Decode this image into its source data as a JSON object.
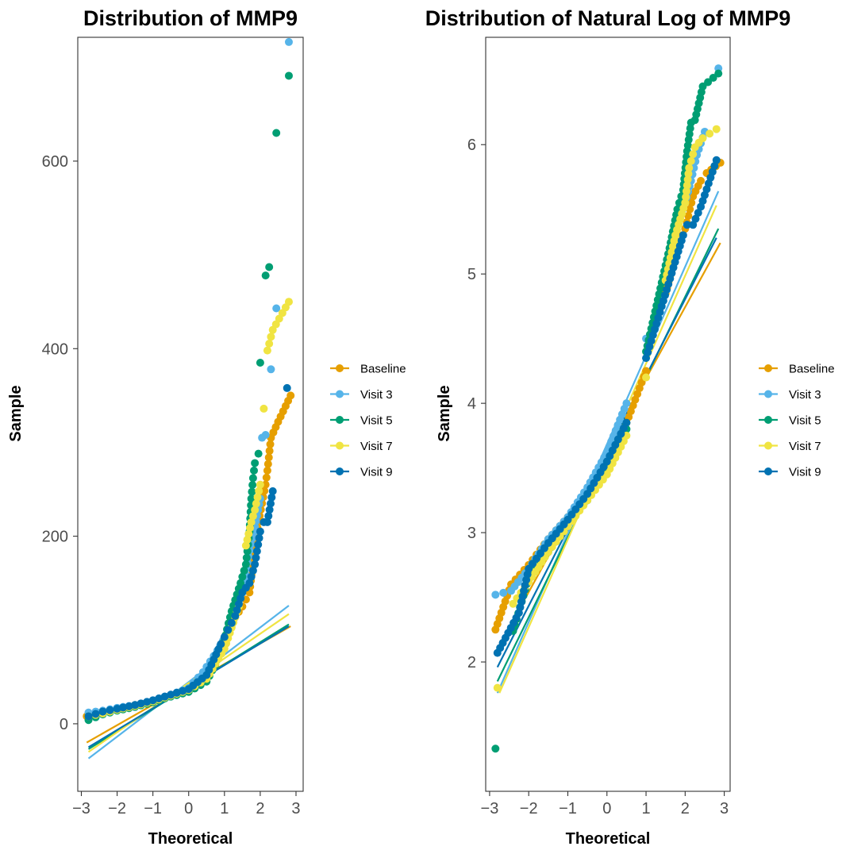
{
  "colors": {
    "Baseline": "#E69F00",
    "Visit 3": "#56B4E9",
    "Visit 5": "#009E73",
    "Visit 7": "#F0E442",
    "Visit 9": "#0072B2"
  },
  "legend": [
    "Baseline",
    "Visit 3",
    "Visit 5",
    "Visit 7",
    "Visit 9"
  ],
  "chart_data": [
    {
      "type": "scatter",
      "subtype": "qq-plot",
      "title": "Distribution of MMP9",
      "xlabel": "Theoretical",
      "ylabel": "Sample",
      "xlim": [
        -3.1,
        3.2
      ],
      "ylim": [
        -72,
        732
      ],
      "xticks": [
        -3,
        -2,
        -1,
        0,
        1,
        2,
        3
      ],
      "xtick_labels": [
        "−3",
        "−2",
        "−1",
        "0",
        "1",
        "2",
        "3"
      ],
      "yticks": [
        0,
        200,
        400,
        600
      ],
      "grid": false,
      "legend_position": "right",
      "series": [
        {
          "name": "Baseline",
          "line": [
            [
              -2.85,
              -20
            ],
            [
              2.85,
              104
            ]
          ],
          "points": [
            [
              -2.85,
              8
            ],
            [
              -2.45,
              12
            ],
            [
              -2.0,
              16
            ],
            [
              -1.5,
              20
            ],
            [
              -1.0,
              24
            ],
            [
              -0.5,
              30
            ],
            [
              0.0,
              36
            ],
            [
              0.5,
              50
            ],
            [
              0.9,
              80
            ],
            [
              1.2,
              108
            ],
            [
              1.5,
              125
            ],
            [
              1.7,
              140
            ],
            [
              1.85,
              190
            ],
            [
              1.95,
              215
            ],
            [
              2.05,
              235
            ],
            [
              2.15,
              255
            ],
            [
              2.2,
              270
            ],
            [
              2.3,
              305
            ],
            [
              2.5,
              322
            ],
            [
              2.85,
              350
            ]
          ]
        },
        {
          "name": "Visit 3",
          "line": [
            [
              -2.8,
              -37
            ],
            [
              2.8,
              126
            ]
          ],
          "points": [
            [
              -2.8,
              12
            ],
            [
              -2.4,
              14
            ],
            [
              -2.0,
              17
            ],
            [
              -1.5,
              20
            ],
            [
              -1.0,
              25
            ],
            [
              -0.5,
              31
            ],
            [
              0.0,
              38
            ],
            [
              0.4,
              55
            ],
            [
              0.8,
              78
            ],
            [
              1.2,
              105
            ],
            [
              1.5,
              140
            ],
            [
              1.7,
              185
            ],
            [
              1.85,
              210
            ],
            [
              2.0,
              240
            ],
            [
              2.05,
              305
            ],
            [
              2.15,
              308
            ],
            [
              2.3,
              378
            ],
            [
              2.45,
              443
            ],
            [
              2.8,
              727
            ]
          ]
        },
        {
          "name": "Visit 5",
          "line": [
            [
              -2.8,
              -27
            ],
            [
              2.8,
              106
            ]
          ],
          "points": [
            [
              -2.8,
              4
            ],
            [
              -2.4,
              10
            ],
            [
              -2.0,
              14
            ],
            [
              -1.5,
              18
            ],
            [
              -1.0,
              23
            ],
            [
              -0.5,
              29
            ],
            [
              0.0,
              34
            ],
            [
              0.5,
              45
            ],
            [
              0.9,
              75
            ],
            [
              1.2,
              120
            ],
            [
              1.45,
              150
            ],
            [
              1.6,
              170
            ],
            [
              1.7,
              205
            ],
            [
              1.75,
              240
            ],
            [
              1.8,
              262
            ],
            [
              1.85,
              278
            ],
            [
              1.95,
              288
            ],
            [
              2.0,
              385
            ],
            [
              2.15,
              478
            ],
            [
              2.25,
              487
            ],
            [
              2.45,
              630
            ],
            [
              2.8,
              691
            ]
          ]
        },
        {
          "name": "Visit 7",
          "line": [
            [
              -2.8,
              -30
            ],
            [
              2.8,
              117
            ]
          ],
          "points": [
            [
              -2.8,
              8
            ],
            [
              -2.4,
              11
            ],
            [
              -2.0,
              15
            ],
            [
              -1.5,
              19
            ],
            [
              -1.0,
              24
            ],
            [
              -0.5,
              30
            ],
            [
              0.0,
              36
            ],
            [
              0.5,
              48
            ],
            [
              1.0,
              80
            ],
            [
              1.4,
              125
            ],
            [
              1.6,
              190
            ],
            [
              1.75,
              215
            ],
            [
              1.85,
              228
            ],
            [
              2.0,
              255
            ],
            [
              2.1,
              336
            ],
            [
              2.2,
              398
            ],
            [
              2.35,
              420
            ],
            [
              2.8,
              450
            ]
          ]
        },
        {
          "name": "Visit 9",
          "line": [
            [
              -2.8,
              -25
            ],
            [
              2.8,
              104
            ]
          ],
          "points": [
            [
              -2.8,
              8
            ],
            [
              -2.4,
              13
            ],
            [
              -2.0,
              16
            ],
            [
              -1.5,
              20
            ],
            [
              -1.0,
              25
            ],
            [
              -0.5,
              31
            ],
            [
              0.0,
              37
            ],
            [
              0.5,
              52
            ],
            [
              0.9,
              85
            ],
            [
              1.1,
              100
            ],
            [
              1.3,
              115
            ],
            [
              1.5,
              140
            ],
            [
              1.7,
              150
            ],
            [
              1.85,
              170
            ],
            [
              2.0,
              205
            ],
            [
              2.1,
              215
            ],
            [
              2.2,
              215
            ],
            [
              2.35,
              248
            ],
            [
              2.75,
              358
            ]
          ]
        }
      ]
    },
    {
      "type": "scatter",
      "subtype": "qq-plot",
      "title": "Distribution of Natural Log of MMP9",
      "xlabel": "Theoretical",
      "ylabel": "Sample",
      "xlim": [
        -3.1,
        3.15
      ],
      "ylim": [
        1.0,
        6.83
      ],
      "xticks": [
        -3,
        -2,
        -1,
        0,
        1,
        2,
        3
      ],
      "xtick_labels": [
        "−3",
        "−2",
        "−1",
        "0",
        "1",
        "2",
        "3"
      ],
      "yticks": [
        2,
        3,
        4,
        5,
        6
      ],
      "grid": false,
      "legend_position": "right",
      "series": [
        {
          "name": "Baseline",
          "line": [
            [
              -2.8,
              2.1
            ],
            [
              2.9,
              5.24
            ]
          ],
          "points": [
            [
              -2.85,
              2.25
            ],
            [
              -2.45,
              2.6
            ],
            [
              -2.0,
              2.75
            ],
            [
              -1.5,
              2.95
            ],
            [
              -1.0,
              3.12
            ],
            [
              -0.5,
              3.3
            ],
            [
              0.0,
              3.55
            ],
            [
              0.5,
              3.85
            ],
            [
              1.0,
              4.25
            ],
            [
              1.5,
              4.85
            ],
            [
              1.8,
              5.2
            ],
            [
              2.0,
              5.35
            ],
            [
              2.2,
              5.6
            ],
            [
              2.4,
              5.72
            ],
            [
              2.55,
              5.78
            ],
            [
              2.9,
              5.86
            ]
          ]
        },
        {
          "name": "Visit 3",
          "line": [
            [
              -2.8,
              1.76
            ],
            [
              2.85,
              5.64
            ]
          ],
          "points": [
            [
              -2.85,
              2.52
            ],
            [
              -2.45,
              2.55
            ],
            [
              -2.0,
              2.72
            ],
            [
              -1.5,
              2.95
            ],
            [
              -1.0,
              3.12
            ],
            [
              -0.5,
              3.35
            ],
            [
              0.0,
              3.62
            ],
            [
              0.5,
              4.0
            ],
            [
              1.0,
              4.5
            ],
            [
              1.5,
              5.0
            ],
            [
              1.75,
              5.35
            ],
            [
              2.0,
              5.55
            ],
            [
              2.15,
              5.72
            ],
            [
              2.3,
              5.92
            ],
            [
              2.5,
              6.1
            ],
            [
              2.85,
              6.59
            ]
          ]
        },
        {
          "name": "Visit 5",
          "line": [
            [
              -2.8,
              1.85
            ],
            [
              2.85,
              5.35
            ]
          ],
          "points": [
            [
              -2.85,
              1.33
            ],
            [
              -2.4,
              2.24
            ],
            [
              -2.0,
              2.65
            ],
            [
              -1.5,
              2.85
            ],
            [
              -1.0,
              3.08
            ],
            [
              -0.5,
              3.25
            ],
            [
              0.0,
              3.5
            ],
            [
              0.5,
              3.8
            ],
            [
              1.0,
              4.4
            ],
            [
              1.3,
              4.8
            ],
            [
              1.6,
              5.2
            ],
            [
              1.8,
              5.5
            ],
            [
              1.95,
              5.65
            ],
            [
              2.05,
              5.95
            ],
            [
              2.15,
              6.17
            ],
            [
              2.25,
              6.19
            ],
            [
              2.45,
              6.45
            ],
            [
              2.85,
              6.55
            ]
          ]
        },
        {
          "name": "Visit 7",
          "line": [
            [
              -2.75,
              1.76
            ],
            [
              2.8,
              5.53
            ]
          ],
          "points": [
            [
              -2.8,
              1.8
            ],
            [
              -2.4,
              2.45
            ],
            [
              -2.0,
              2.62
            ],
            [
              -1.5,
              2.85
            ],
            [
              -1.0,
              3.05
            ],
            [
              -0.5,
              3.25
            ],
            [
              0.0,
              3.45
            ],
            [
              0.5,
              3.75
            ],
            [
              1.0,
              4.2
            ],
            [
              1.5,
              4.95
            ],
            [
              1.75,
              5.3
            ],
            [
              2.0,
              5.55
            ],
            [
              2.1,
              5.82
            ],
            [
              2.25,
              5.98
            ],
            [
              2.45,
              6.05
            ],
            [
              2.8,
              6.12
            ]
          ]
        },
        {
          "name": "Visit 9",
          "line": [
            [
              -2.8,
              1.96
            ],
            [
              2.8,
              5.28
            ]
          ],
          "points": [
            [
              -2.8,
              2.07
            ],
            [
              -2.25,
              2.38
            ],
            [
              -2.0,
              2.72
            ],
            [
              -1.5,
              2.92
            ],
            [
              -1.0,
              3.1
            ],
            [
              -0.5,
              3.3
            ],
            [
              0.0,
              3.55
            ],
            [
              0.5,
              3.85
            ],
            [
              1.0,
              4.35
            ],
            [
              1.4,
              4.75
            ],
            [
              1.7,
              5.05
            ],
            [
              1.95,
              5.3
            ],
            [
              2.05,
              5.38
            ],
            [
              2.2,
              5.38
            ],
            [
              2.4,
              5.52
            ],
            [
              2.8,
              5.88
            ]
          ]
        }
      ]
    }
  ]
}
